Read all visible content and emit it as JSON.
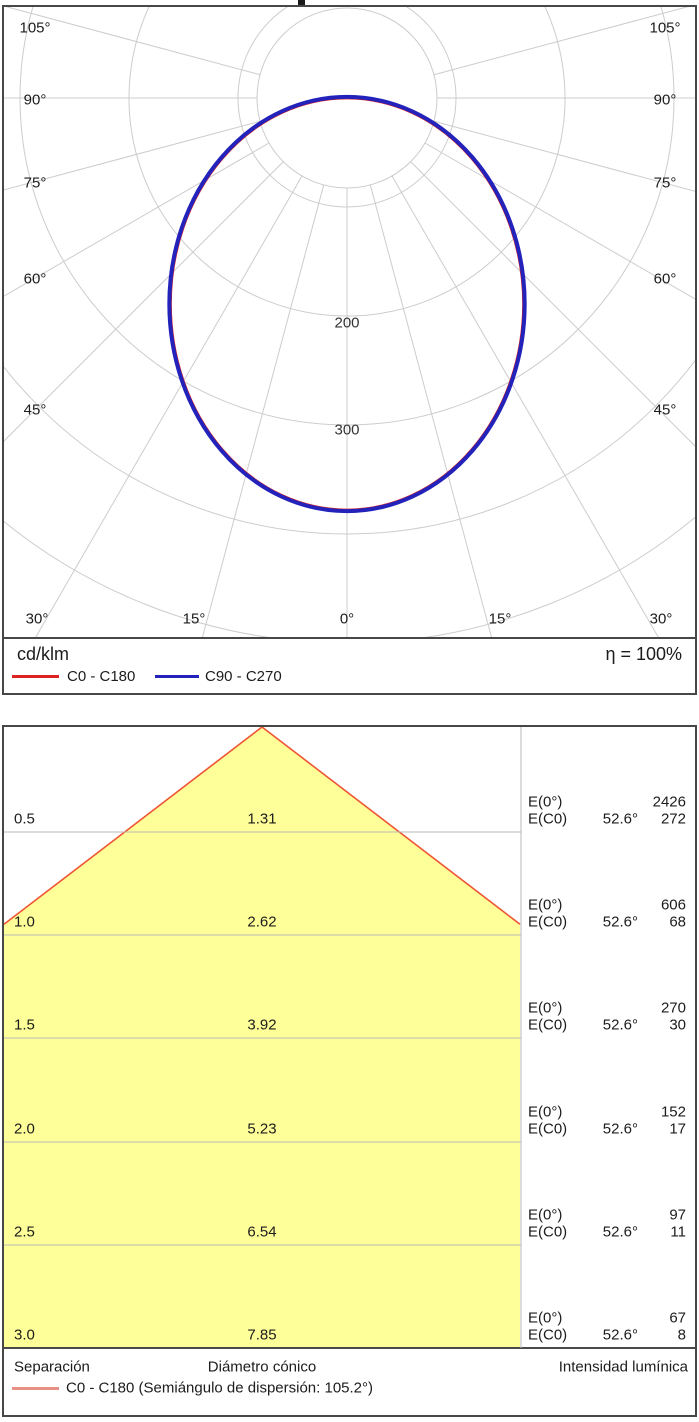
{
  "polar": {
    "unit": "cd/klm",
    "efficiency": "η = 100%",
    "angle_labels_left": [
      "105°",
      "90°",
      "75°",
      "60°",
      "45°"
    ],
    "angle_labels_right": [
      "105°",
      "90°",
      "75°",
      "60°",
      "45°"
    ],
    "angle_labels_bottom": [
      "30°",
      "15°",
      "0°",
      "15°",
      "30°"
    ],
    "ring_labels": [
      "200",
      "300"
    ],
    "legend": [
      {
        "label": "C0 - C180",
        "color": "#dd2222"
      },
      {
        "label": "C90 - C270",
        "color": "#2323bb"
      }
    ]
  },
  "cone": {
    "footer_separation": "Separación",
    "footer_diameter": "Diámetro cónico",
    "footer_intensity": "Intensidad lumínica",
    "legend_label": "C0 - C180 (Semiángulo de dispersión: 105.2°)",
    "legend_color": "#e89086",
    "e0_label": "E(0°)",
    "ec0_label": "E(C0)",
    "ec0_angle": "52.6°",
    "cone_fill": "#ffff99",
    "cone_line_color": "#ee5533"
  },
  "chart_data": [
    {
      "type": "line",
      "subtype": "polar-intensity-distribution",
      "unit": "cd/klm",
      "efficiency_pct": 100,
      "angle_ticks_deg": [
        0,
        15,
        30,
        45,
        60,
        75,
        90,
        105
      ],
      "ring_step": 100,
      "ring_max": 500,
      "ring_labels_shown": [
        200,
        300
      ],
      "series": [
        {
          "name": "C0 - C180",
          "color": "#dd2222",
          "angles_deg": [
            0,
            15,
            30,
            45,
            60,
            75,
            90
          ],
          "values_cd_per_klm": [
            380,
            358,
            302,
            228,
            151,
            77,
            16
          ]
        },
        {
          "name": "C90 - C270",
          "color": "#2323bb",
          "angles_deg": [
            0,
            15,
            30,
            45,
            60,
            75,
            90
          ],
          "values_cd_per_klm": [
            380,
            358,
            302,
            228,
            151,
            77,
            16
          ]
        }
      ],
      "curve_fit": {
        "shape": "ellipse",
        "center_offset_cd": [
          0,
          189
        ],
        "semi_axes_cd": [
          163,
          190
        ]
      },
      "note": "C0-C180 curve coincides with C90-C270 curve and is hidden beneath it"
    },
    {
      "type": "table",
      "subtype": "cone-diagram",
      "separation_m": [
        0.5,
        1.0,
        1.5,
        2.0,
        2.5,
        3.0
      ],
      "cone_diameter_m": [
        1.31,
        2.62,
        3.92,
        5.23,
        6.54,
        7.85
      ],
      "E0_lx": [
        2426,
        606,
        270,
        152,
        97,
        67
      ],
      "EC0_lx": [
        272,
        68,
        30,
        17,
        11,
        8
      ],
      "EC0_angle_deg": 52.6,
      "dispersion_semi_angle_deg": 105.2
    }
  ]
}
